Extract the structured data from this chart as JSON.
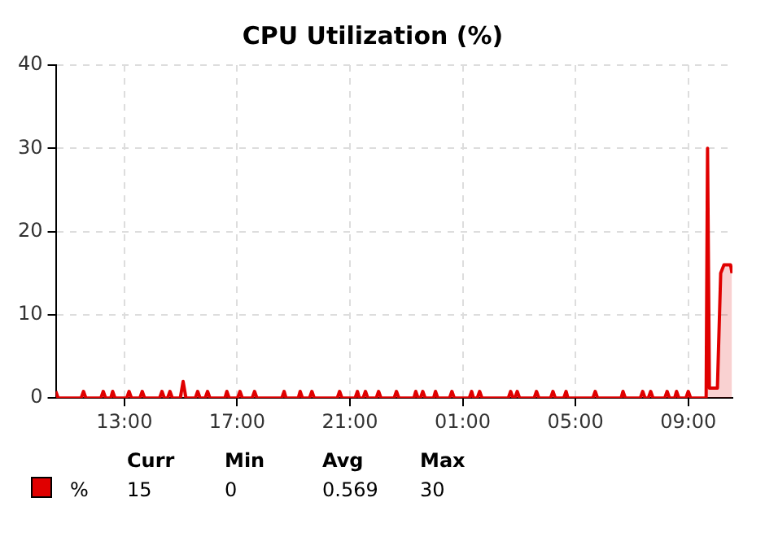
{
  "chart_data": {
    "type": "area",
    "title": "CPU Utilization (%)",
    "xlim": [
      "--01-01T10:34",
      "--01-02T10:34"
    ],
    "xticks": [
      {
        "value": "--01-01T13:00",
        "label": "13:00"
      },
      {
        "value": "--01-01T17:00",
        "label": "17:00"
      },
      {
        "value": "--01-01T21:00",
        "label": "21:00"
      },
      {
        "value": "--01-02T01:00",
        "label": "01:00"
      },
      {
        "value": "--01-02T05:00",
        "label": "05:00"
      },
      {
        "value": "--01-02T09:00",
        "label": "09:00"
      }
    ],
    "ylim": [
      0,
      40
    ],
    "yticks": [
      0,
      10,
      20,
      30,
      40
    ],
    "grid": true,
    "legend": "bottom",
    "marker": "none",
    "line_style": "solid",
    "series": [
      {
        "name": "%",
        "color": "#e00000",
        "x": [
          "--01-01T10:34",
          "--01-01T10:39",
          "--01-01T11:28",
          "--01-01T11:33",
          "--01-01T11:38",
          "--01-01T12:10",
          "--01-01T12:15",
          "--01-01T12:20",
          "--01-01T12:31",
          "--01-01T12:35",
          "--01-01T12:40",
          "--01-01T13:05",
          "--01-01T13:10",
          "--01-01T13:15",
          "--01-01T13:33",
          "--01-01T13:38",
          "--01-01T13:43",
          "--01-01T14:15",
          "--01-01T14:20",
          "--01-01T14:25",
          "--01-01T14:32",
          "--01-01T14:37",
          "--01-01T14:42",
          "--01-01T14:59",
          "--01-01T15:05",
          "--01-01T15:11",
          "--01-01T15:31",
          "--01-01T15:36",
          "--01-01T15:41",
          "--01-01T15:52",
          "--01-01T15:57",
          "--01-01T16:02",
          "--01-01T16:34",
          "--01-01T16:38",
          "--01-01T16:43",
          "--01-01T17:01",
          "--01-01T17:06",
          "--01-01T17:11",
          "--01-01T17:32",
          "--01-01T17:37",
          "--01-01T17:42",
          "--01-01T18:35",
          "--01-01T18:40",
          "--01-01T18:44",
          "--01-01T19:10",
          "--01-01T19:14",
          "--01-01T19:19",
          "--01-01T19:34",
          "--01-01T19:39",
          "--01-01T19:44",
          "--01-01T20:33",
          "--01-01T20:38",
          "--01-01T20:43",
          "--01-01T21:11",
          "--01-01T21:16",
          "--01-01T21:20",
          "--01-01T21:28",
          "--01-01T21:33",
          "--01-01T21:38",
          "--01-01T21:56",
          "--01-01T22:01",
          "--01-01T22:06",
          "--01-01T22:34",
          "--01-01T22:39",
          "--01-01T22:44",
          "--01-01T23:16",
          "--01-01T23:20",
          "--01-01T23:25",
          "--01-01T23:30",
          "--01-01T23:35",
          "--01-01T23:40",
          "--01-01T23:58",
          "--01-02T00:02",
          "--01-02T00:07",
          "--01-02T00:32",
          "--01-02T00:37",
          "--01-02T00:42",
          "--01-02T01:14",
          "--01-02T01:19",
          "--01-02T01:23",
          "--01-02T01:31",
          "--01-02T01:36",
          "--01-02T01:41",
          "--01-02T02:37",
          "--01-02T02:42",
          "--01-02T02:47",
          "--01-02T02:51",
          "--01-02T02:56",
          "--01-02T03:01",
          "--01-02T03:32",
          "--01-02T03:37",
          "--01-02T03:42",
          "--01-02T04:07",
          "--01-02T04:12",
          "--01-02T04:17",
          "--01-02T04:35",
          "--01-02T04:40",
          "--01-02T04:44",
          "--01-02T05:37",
          "--01-02T05:42",
          "--01-02T05:47",
          "--01-02T06:37",
          "--01-02T06:41",
          "--01-02T06:46",
          "--01-02T07:18",
          "--01-02T07:23",
          "--01-02T07:28",
          "--01-02T07:35",
          "--01-02T07:40",
          "--01-02T07:45",
          "--01-02T08:10",
          "--01-02T08:15",
          "--01-02T08:20",
          "--01-02T08:31",
          "--01-02T08:35",
          "--01-02T08:40",
          "--01-02T08:55",
          "--01-02T09:00",
          "--01-02T09:05",
          "--01-02T09:38",
          "--01-02T09:41",
          "--01-02T09:45",
          "--01-02T10:02",
          "--01-02T10:09",
          "--01-02T10:16",
          "--01-02T10:30",
          "--01-02T10:33"
        ],
        "values": [
          0.8,
          0,
          0,
          0.8,
          0,
          0,
          0.8,
          0,
          0,
          0.8,
          0,
          0,
          0.8,
          0,
          0,
          0.8,
          0,
          0,
          0.8,
          0,
          0,
          0.8,
          0,
          0,
          2,
          0,
          0,
          0.8,
          0,
          0,
          0.8,
          0,
          0,
          0.8,
          0,
          0,
          0.8,
          0,
          0,
          0.8,
          0,
          0,
          0.8,
          0,
          0,
          0.8,
          0,
          0,
          0.8,
          0,
          0,
          0.8,
          0,
          0,
          0.8,
          0,
          0,
          0.8,
          0,
          0,
          0.8,
          0,
          0,
          0.8,
          0,
          0,
          0.8,
          0,
          0,
          0.8,
          0,
          0,
          0.8,
          0,
          0,
          0.8,
          0,
          0,
          0.8,
          0,
          0,
          0.8,
          0,
          0,
          0.8,
          0,
          0,
          0.8,
          0,
          0,
          0.8,
          0,
          0,
          0.8,
          0,
          0,
          0.8,
          0,
          0,
          0.8,
          0,
          0,
          0.8,
          0,
          0,
          0.8,
          0,
          0,
          0.8,
          0,
          0,
          0.8,
          0,
          0,
          0.8,
          0,
          0,
          0.8,
          0,
          0,
          30,
          1.2,
          1.2,
          15,
          16,
          16,
          15
        ]
      }
    ],
    "annotations": [
      "Curr",
      "Min",
      "Avg",
      "Max",
      "15",
      "0",
      "0.569",
      "30"
    ]
  }
}
